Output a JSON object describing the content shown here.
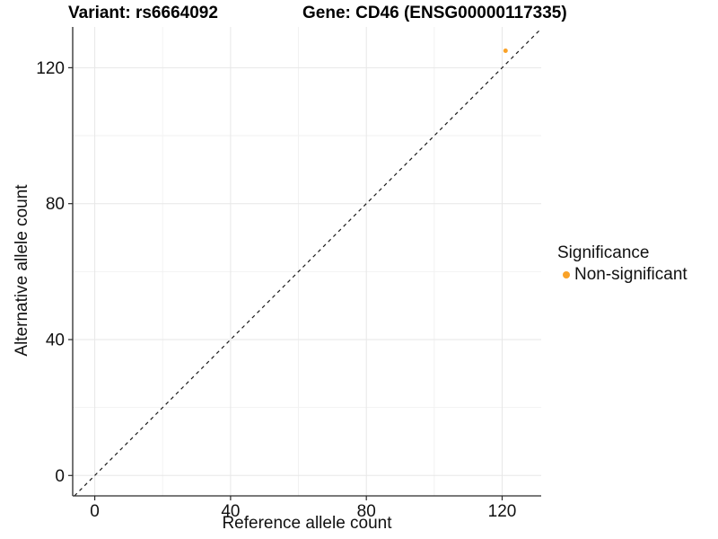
{
  "chart_data": {
    "type": "scatter",
    "title_left": "Variant: rs6664092",
    "title_right": "Gene: CD46 (ENSG00000117335)",
    "xlabel": "Reference allele count",
    "ylabel": "Alternative allele count",
    "xlim": [
      -6.5,
      131.5
    ],
    "ylim": [
      -6.0,
      132.0
    ],
    "xticks": [
      0,
      40,
      80,
      120
    ],
    "yticks": [
      0,
      40,
      80,
      120
    ],
    "minor_gridlines_x": [
      20,
      60,
      100,
      140
    ],
    "minor_gridlines_y": [
      20,
      60,
      100,
      140
    ],
    "grid": true,
    "panel_background": "#ffffff",
    "major_grid_color": "#e7e7e7",
    "minor_grid_color": "#f2f2f2",
    "axis_line_color": "#2a2a2a",
    "reference_line": {
      "type": "identity",
      "slope": 1,
      "intercept": 0,
      "style": "dashed",
      "color": "#1a1a1a"
    },
    "series": [
      {
        "name": "Non-significant",
        "color": "#F9A228",
        "points": [
          {
            "x": 121,
            "y": 125
          }
        ]
      }
    ],
    "legend": {
      "title": "Significance",
      "position": "right",
      "items": [
        {
          "label": "Non-significant",
          "color": "#F9A228"
        }
      ]
    }
  }
}
